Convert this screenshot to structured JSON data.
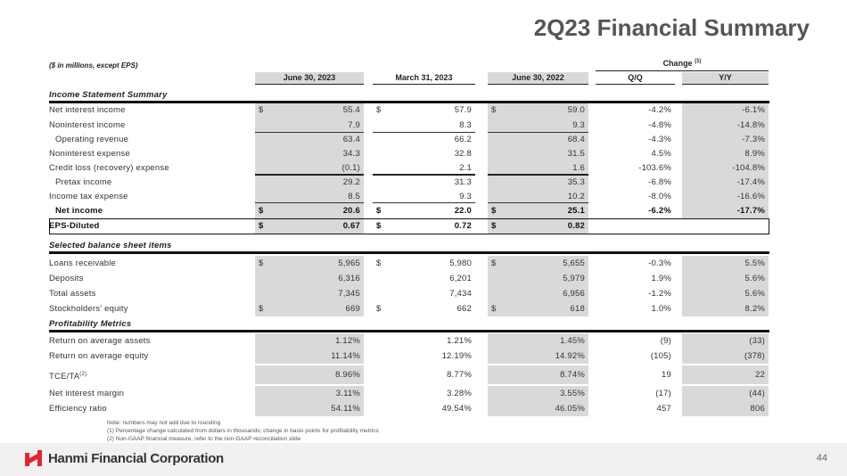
{
  "title": "2Q23 Financial Summary",
  "units": "($ in millions, except EPS)",
  "change_label": "Change",
  "change_note": "(1)",
  "columns": [
    "June 30, 2023",
    "March 31, 2023",
    "June 30, 2022",
    "Q/Q",
    "Y/Y"
  ],
  "rows": [
    {
      "type": "section",
      "label": "Income Statement Summary"
    },
    {
      "label": "Net interest income",
      "dollar": true,
      "v": [
        "55.4",
        "57.9",
        "59.0",
        "-4.2%",
        "-6.1%"
      ]
    },
    {
      "label": "Noninterest income",
      "v": [
        "7.9",
        "8.3",
        "9.3",
        "-4.8%",
        "-14.8%"
      ]
    },
    {
      "label": "Operating revenue",
      "indent": true,
      "v": [
        "63.4",
        "66.2",
        "68.4",
        "-4.3%",
        "-7.3%"
      ]
    },
    {
      "label": "Noninterest expense",
      "v": [
        "34.3",
        "32.8",
        "31.5",
        "4.5%",
        "8.9%"
      ]
    },
    {
      "label": "Credit loss (recovery) expense",
      "v": [
        "(0.1)",
        "2.1",
        "1.6",
        "-103.6%",
        "-104.8%"
      ]
    },
    {
      "label": "Pretax income",
      "indent": true,
      "v": [
        "29.2",
        "31.3",
        "35.3",
        "-6.8%",
        "-17.4%"
      ]
    },
    {
      "label": "Income tax expense",
      "v": [
        "8.5",
        "9.3",
        "10.2",
        "-8.0%",
        "-16.6%"
      ]
    },
    {
      "label": "Net income",
      "indent": true,
      "bold": true,
      "dollar": true,
      "v": [
        "20.6",
        "22.0",
        "25.1",
        "-6.2%",
        "-17.7%"
      ]
    },
    {
      "label": "EPS-Diluted",
      "bold": true,
      "dollar": true,
      "eps": true,
      "v": [
        "0.67",
        "0.72",
        "0.82",
        "",
        ""
      ]
    },
    {
      "type": "section",
      "label": "Selected balance sheet items"
    },
    {
      "label": "Loans receivable",
      "dollar": true,
      "v": [
        "5,965",
        "5,980",
        "5,655",
        "-0.3%",
        "5.5%"
      ]
    },
    {
      "label": "Deposits",
      "v": [
        "6,316",
        "6,201",
        "5,979",
        "1.9%",
        "5.6%"
      ]
    },
    {
      "label": "Total assets",
      "v": [
        "7,345",
        "7,434",
        "6,956",
        "-1.2%",
        "5.6%"
      ]
    },
    {
      "label": "Stockholders' equity",
      "dollar": true,
      "v": [
        "669",
        "662",
        "618",
        "1.0%",
        "8.2%"
      ]
    },
    {
      "type": "section",
      "label": "Profitability Metrics"
    },
    {
      "label": "Return on average assets",
      "v": [
        "1.12%",
        "1.21%",
        "1.45%",
        "(9)",
        "(33)"
      ]
    },
    {
      "label": "Return on average equity",
      "v": [
        "11.14%",
        "12.19%",
        "14.92%",
        "(105)",
        "(378)"
      ]
    },
    {
      "label": "TCE/TA",
      "sup": "(2)",
      "v": [
        "8.96%",
        "8.77%",
        "8.74%",
        "19",
        "22"
      ]
    },
    {
      "label": "Net interest margin",
      "v": [
        "3.11%",
        "3.28%",
        "3.55%",
        "(17)",
        "(44)"
      ]
    },
    {
      "label": "Efficiency ratio",
      "v": [
        "54.11%",
        "49.54%",
        "46.05%",
        "457",
        "806"
      ]
    }
  ],
  "dollar_sign": "$",
  "notes": [
    "Note: numbers may not add due to rounding",
    "(1)   Percentage change calculated from dollars in thousands; change in basis points for profitability metrics",
    "(2)   Non-GAAP financial measure, refer to the non-GAAP reconciliation slide"
  ],
  "company": "Hanmi Financial Corporation",
  "page_number": "44",
  "colors": {
    "brand_red": "#e3262d",
    "shade": "#d9d9d9"
  }
}
